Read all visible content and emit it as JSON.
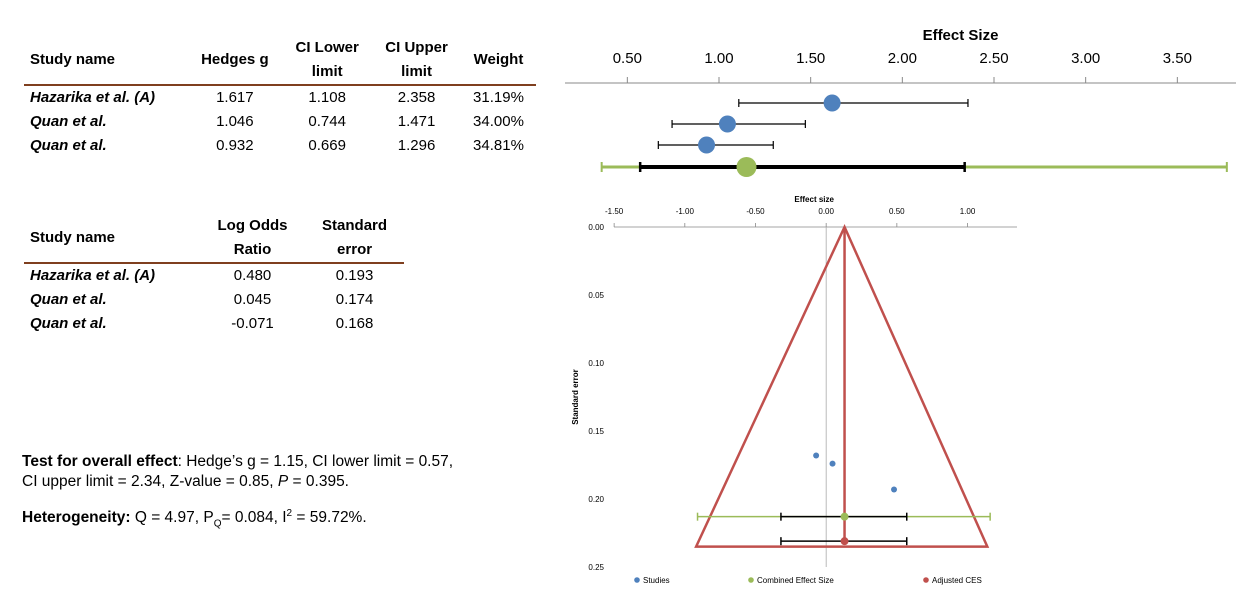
{
  "table1": {
    "headers": [
      "Study name",
      "Hedges g",
      "CI Lower limit",
      "CI Upper limit",
      "Weight"
    ],
    "header_lines": [
      [
        "Study name"
      ],
      [
        "Hedges g"
      ],
      [
        "CI Lower",
        "limit"
      ],
      [
        "CI Upper",
        "limit"
      ],
      [
        "Weight"
      ]
    ],
    "rows": [
      [
        "Hazarika et al. (A)",
        "1.617",
        "1.108",
        "2.358",
        "31.19%"
      ],
      [
        "Quan et al.",
        "1.046",
        "0.744",
        "1.471",
        "34.00%"
      ],
      [
        "Quan et al.",
        "0.932",
        "0.669",
        "1.296",
        "34.81%"
      ]
    ]
  },
  "table2": {
    "header_lines": [
      [
        "Study name"
      ],
      [
        "Log Odds",
        "Ratio"
      ],
      [
        "Standard",
        "error"
      ]
    ],
    "rows": [
      [
        "Hazarika et al. (A)",
        "0.480",
        "0.193"
      ],
      [
        "Quan et al.",
        "0.045",
        "0.174"
      ],
      [
        "Quan et al.",
        "-0.071",
        "0.168"
      ]
    ]
  },
  "notes": {
    "overall_label": "Test for overall effect",
    "overall_text1": ": Hedge’s g = 1.15, CI lower limit = 0.57,",
    "overall_text2a": "CI upper limit  = 2.34, Z-value = 0.85, ",
    "overall_p": "P",
    "overall_text2b": " = 0.395.",
    "het_label": "Heterogeneity:",
    "het_text_a": " Q = 4.97, P",
    "het_sub": "Q",
    "het_text_b": "=  0.084, I",
    "het_sup": "2",
    "het_text_c": " = 59.72%."
  },
  "colors": {
    "study_marker": "#4f81bd",
    "combined_marker": "#9bbb59",
    "adjusted": "#c0504d",
    "table_rule": "#7f3f1f"
  },
  "chart_data": [
    {
      "type": "forest",
      "title": "Effect Size",
      "tick_labels": [
        "0.50",
        "1.00",
        "1.50",
        "2.00",
        "2.50",
        "3.00",
        "3.50"
      ],
      "ticks": [
        0.5,
        1.0,
        1.5,
        2.0,
        2.5,
        3.0,
        3.5
      ],
      "xlim": [
        0.16,
        3.82
      ],
      "studies": [
        {
          "g": 1.617,
          "lower": 1.108,
          "upper": 2.358
        },
        {
          "g": 1.046,
          "lower": 0.744,
          "upper": 1.471
        },
        {
          "g": 0.932,
          "lower": 0.669,
          "upper": 1.296
        }
      ],
      "combined": {
        "g": 1.15,
        "lower": 0.57,
        "upper": 2.34,
        "prediction_lower": 0.36,
        "prediction_upper": 3.77
      }
    },
    {
      "type": "scatter",
      "subtype": "funnel",
      "xlabel": "Effect size",
      "ylabel": "Standard error",
      "x_tick_labels": [
        "-1.50",
        "-1.00",
        "-0.50",
        "0.00",
        "0.50",
        "1.00"
      ],
      "x_ticks": [
        -1.5,
        -1.0,
        -0.5,
        0.0,
        0.5,
        1.0
      ],
      "y_tick_labels": [
        "0.00",
        "0.05",
        "0.10",
        "0.15",
        "0.20",
        "0.25"
      ],
      "y_ticks": [
        0.0,
        0.05,
        0.1,
        0.15,
        0.2,
        0.25
      ],
      "xlim": [
        -1.6,
        1.35
      ],
      "ylim": [
        0.0,
        0.25
      ],
      "studies": [
        {
          "x": -0.071,
          "y": 0.168
        },
        {
          "x": 0.045,
          "y": 0.174
        },
        {
          "x": 0.48,
          "y": 0.193
        }
      ],
      "combined": {
        "x": 0.13,
        "y": 0.213,
        "ci": [
          -0.32,
          0.57
        ],
        "pi": [
          -0.91,
          1.16
        ]
      },
      "adjusted": {
        "x": 0.13,
        "y": 0.231,
        "ci": [
          -0.32,
          0.57
        ],
        "funnel_apex_y": 0.0,
        "funnel_base_y": 0.235,
        "funnel_base": [
          -0.92,
          1.14
        ]
      },
      "legend": [
        "Studies",
        "Combined Effect Size",
        "Adjusted CES"
      ],
      "legend_position": "bottom"
    }
  ]
}
